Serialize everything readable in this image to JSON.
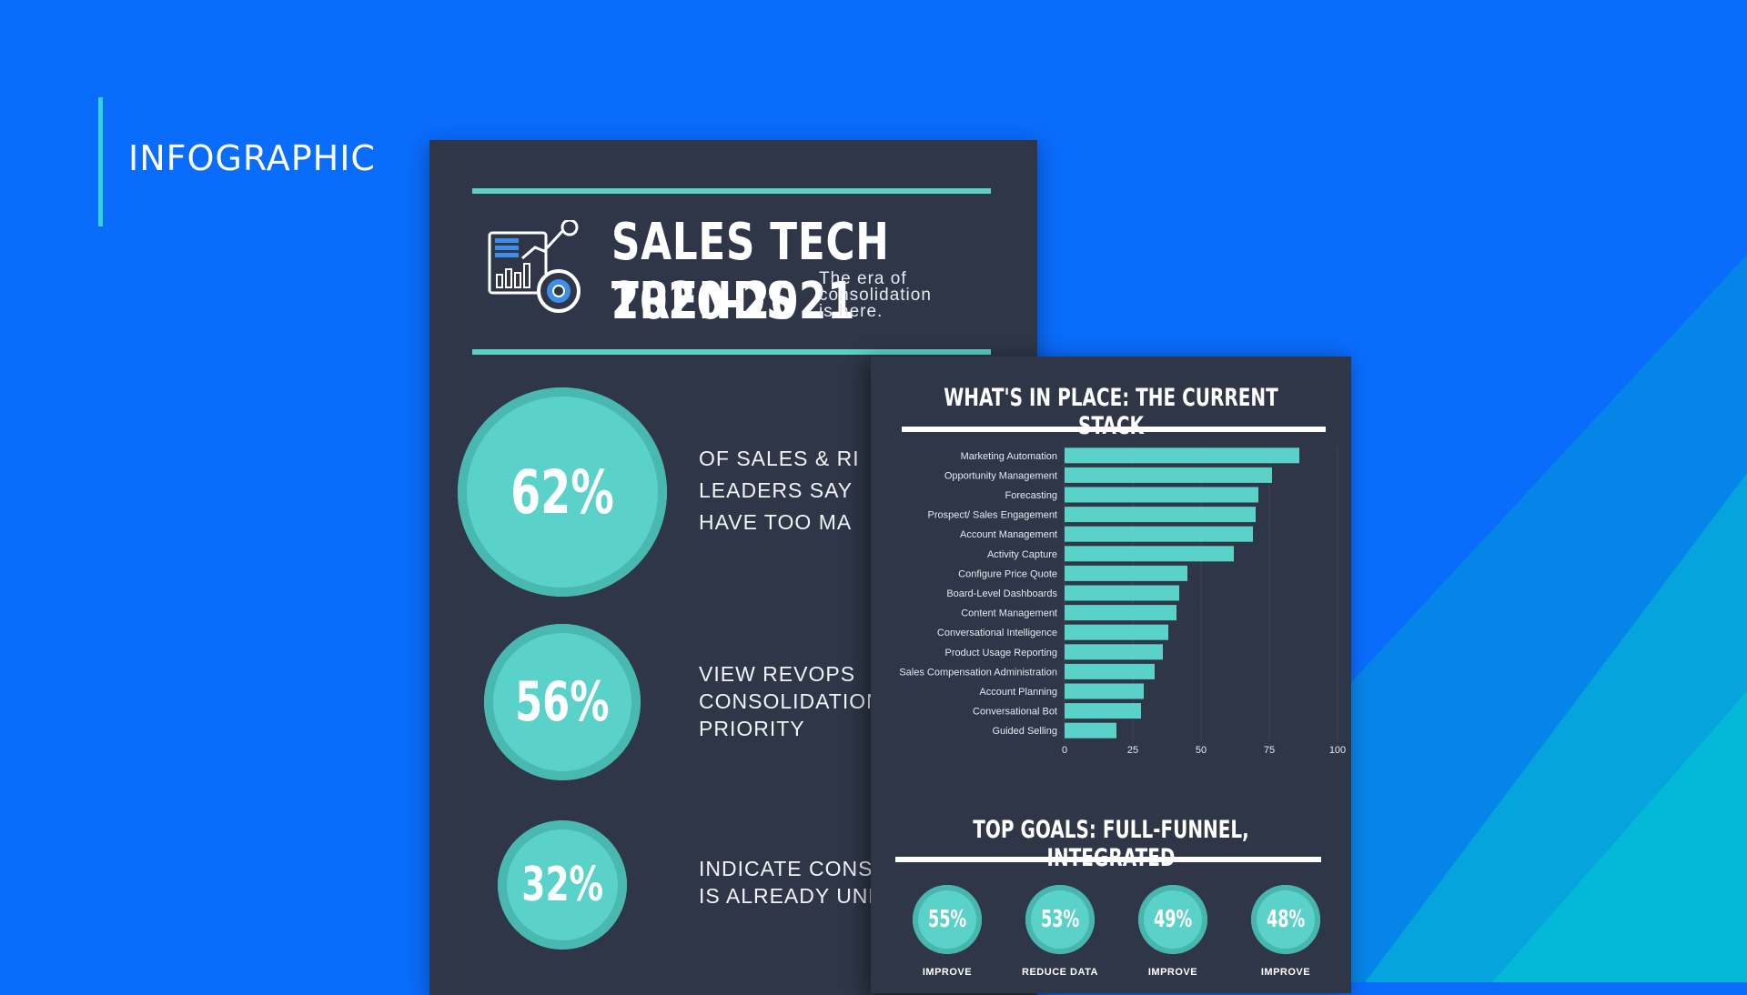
{
  "colors": {
    "background": "#0a6cfb",
    "accent": "#2fd3e0",
    "card": "#2e3648",
    "teal": "#5bd2c9"
  },
  "section_label": "INFOGRAPHIC",
  "infographic": {
    "title_line1": "SALES TECH TRENDS",
    "title_line2": "2020-2021",
    "tagline": [
      "The era of",
      "consolidation",
      "is here."
    ],
    "logo_icon": "analytics-dashboard-icon",
    "stats": [
      {
        "value": "62%",
        "text": [
          "OF SALES & RI",
          "LEADERS SAY",
          "HAVE TOO MA"
        ]
      },
      {
        "value": "56%",
        "text": [
          "VIEW REVOPS",
          "CONSOLIDATION",
          "PRIORITY"
        ]
      },
      {
        "value": "32%",
        "text": [
          "INDICATE CONSC",
          "IS ALREADY UND"
        ]
      }
    ]
  },
  "stack_card": {
    "title": "WHAT'S IN PLACE: THE CURRENT STACK",
    "goals_title": "TOP GOALS: FULL-FUNNEL, INTEGRATED",
    "goals": [
      {
        "value": "55%",
        "label": "IMPROVE"
      },
      {
        "value": "53%",
        "label": "REDUCE DATA"
      },
      {
        "value": "49%",
        "label": "IMPROVE"
      },
      {
        "value": "48%",
        "label": "IMPROVE"
      }
    ]
  },
  "chart_data": {
    "type": "bar",
    "orientation": "horizontal",
    "categories": [
      "Marketing Automation",
      "Opportunity Management",
      "Forecasting",
      "Prospect/ Sales Engagement",
      "Account Management",
      "Activity Capture",
      "Configure Price Quote",
      "Board-Level Dashboards",
      "Content Management",
      "Conversational Intelligence",
      "Product Usage Reporting",
      "Sales Compensation Administration",
      "Account Planning",
      "Conversational Bot",
      "Guided Selling"
    ],
    "values": [
      86,
      76,
      71,
      70,
      69,
      62,
      45,
      42,
      41,
      38,
      36,
      33,
      29,
      28,
      19
    ],
    "xlim": [
      0,
      100
    ],
    "xticks": [
      0,
      25,
      50,
      75,
      100
    ],
    "grid": true,
    "bar_color": "#5bd2c9"
  }
}
